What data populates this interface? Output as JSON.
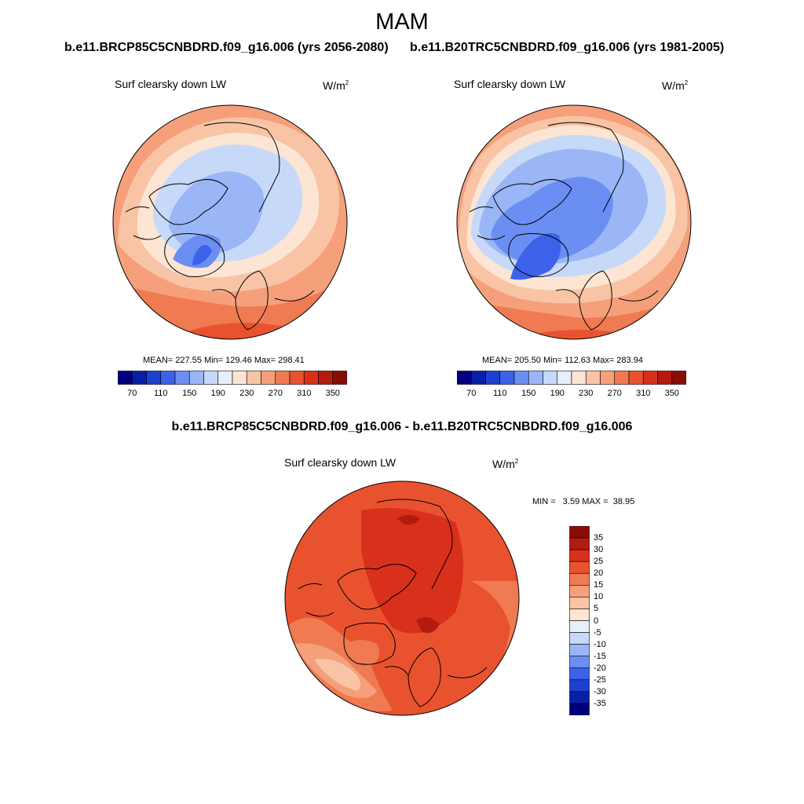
{
  "title": "MAM",
  "panels": {
    "left": {
      "case_title": "b.e11.BRCP85C5CNBDRD.f09_g16.006 (yrs 2056-2080)",
      "variable": "Surf clearsky down LW",
      "units_base": "W/m",
      "units_exp": "2",
      "stats": "MEAN= 227.55  Min= 129.46  Max= 298.41",
      "mean": 227.55,
      "min": 129.46,
      "max": 298.41
    },
    "right": {
      "case_title": "b.e11.B20TRC5CNBDRD.f09_g16.006 (yrs 1981-2005)",
      "variable": "Surf clearsky down LW",
      "units_base": "W/m",
      "units_exp": "2",
      "stats": "MEAN= 205.50  Min= 112.63  Max= 283.94",
      "mean": 205.5,
      "min": 112.63,
      "max": 283.94
    },
    "diff": {
      "case_title": "b.e11.BRCP85C5CNBDRD.f09_g16.006 - b.e11.B20TRC5CNBDRD.f09_g16.006",
      "variable": "Surf clearsky down LW",
      "units_base": "W/m",
      "units_exp": "2",
      "stats": "MIN =   3.59 MAX =  38.95",
      "min": 3.59,
      "max": 38.95
    }
  },
  "colorbar_main": {
    "labels": [
      "70",
      "110",
      "150",
      "190",
      "230",
      "270",
      "310",
      "350"
    ],
    "colors": [
      "#00007f",
      "#0a1fa8",
      "#1f3fd1",
      "#3c62ea",
      "#6b8ef2",
      "#9ab6f6",
      "#c6d9f9",
      "#e7effb",
      "#fce5d2",
      "#f9c4a5",
      "#f5a07b",
      "#f07a52",
      "#e9522f",
      "#d8301a",
      "#b41b10",
      "#8a0c06"
    ]
  },
  "colorbar_diff": {
    "labels": [
      "35",
      "30",
      "25",
      "20",
      "15",
      "10",
      "5",
      "0",
      "-5",
      "-10",
      "-15",
      "-20",
      "-25",
      "-30",
      "-35"
    ],
    "colors": [
      "#8a0c06",
      "#b41b10",
      "#d8301a",
      "#e9522f",
      "#f07a52",
      "#f5a07b",
      "#f9c4a5",
      "#fce5d2",
      "#e7effb",
      "#c6d9f9",
      "#9ab6f6",
      "#6b8ef2",
      "#3c62ea",
      "#1f3fd1",
      "#0a1fa8",
      "#00007f"
    ]
  }
}
